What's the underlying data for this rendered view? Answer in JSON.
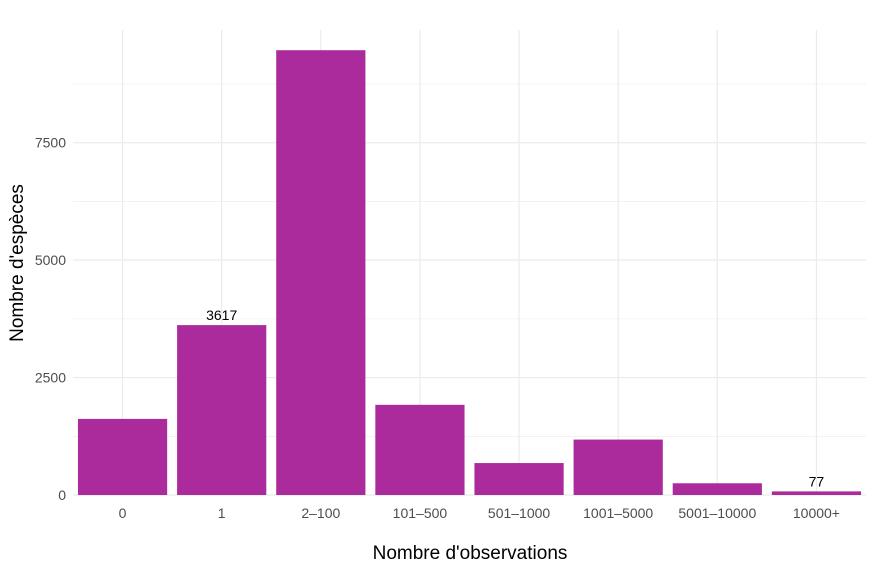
{
  "chart_data": {
    "type": "bar",
    "title": "",
    "xlabel": "Nombre d'observations",
    "ylabel": "Nombre d'espèces",
    "categories": [
      "0",
      "1",
      "2–100",
      "101–500",
      "501–1000",
      "1001–5000",
      "5001–10000",
      "10000+"
    ],
    "values": [
      1620,
      3617,
      9470,
      1920,
      680,
      1180,
      250,
      77
    ],
    "data_labels": [
      "",
      "3617",
      "",
      "",
      "",
      "",
      "",
      "77"
    ],
    "yticks": [
      0,
      2500,
      5000,
      7500
    ],
    "ytick_labels": [
      "0",
      "2500",
      "5000",
      "7500"
    ],
    "ylim": [
      0,
      9900
    ],
    "grid": true,
    "bar_color": "#AB2A9C",
    "grid_color": "#EBEBEB",
    "background": "#FFFFFF"
  }
}
